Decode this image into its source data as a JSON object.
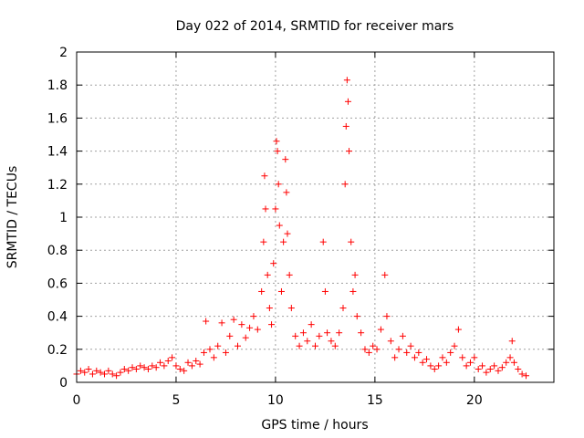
{
  "chart_data": {
    "type": "scatter",
    "title": "Day 022 of 2014, SRMTID for receiver mars",
    "xlabel": "GPS time / hours",
    "ylabel": "SRMTID / TECUs",
    "xlim": [
      0,
      24
    ],
    "ylim": [
      0,
      2
    ],
    "xticks": [
      0,
      5,
      10,
      15,
      20
    ],
    "yticks": [
      0,
      0.2,
      0.4,
      0.6,
      0.8,
      1,
      1.2,
      1.4,
      1.6,
      1.8,
      2
    ],
    "xtick_labels": [
      "0",
      "5",
      "10",
      "15",
      "20"
    ],
    "ytick_labels": [
      "0",
      "0.2",
      "0.4",
      "0.6",
      "0.8",
      "1",
      "1.2",
      "1.4",
      "1.6",
      "1.8",
      "2"
    ],
    "grid": true,
    "marker": "+",
    "color": "#ff0000",
    "series": [
      {
        "name": "SRMTID",
        "data_extent_hours": [
          0,
          22.7
        ],
        "points": [
          [
            0.0,
            0.05
          ],
          [
            0.2,
            0.07
          ],
          [
            0.4,
            0.06
          ],
          [
            0.6,
            0.08
          ],
          [
            0.8,
            0.05
          ],
          [
            1.0,
            0.07
          ],
          [
            1.2,
            0.06
          ],
          [
            1.4,
            0.05
          ],
          [
            1.6,
            0.07
          ],
          [
            1.8,
            0.05
          ],
          [
            2.0,
            0.04
          ],
          [
            2.2,
            0.06
          ],
          [
            2.4,
            0.08
          ],
          [
            2.6,
            0.07
          ],
          [
            2.8,
            0.09
          ],
          [
            3.0,
            0.08
          ],
          [
            3.2,
            0.1
          ],
          [
            3.4,
            0.09
          ],
          [
            3.6,
            0.08
          ],
          [
            3.8,
            0.1
          ],
          [
            4.0,
            0.09
          ],
          [
            4.2,
            0.12
          ],
          [
            4.4,
            0.1
          ],
          [
            4.6,
            0.13
          ],
          [
            4.8,
            0.15
          ],
          [
            5.0,
            0.1
          ],
          [
            5.2,
            0.08
          ],
          [
            5.4,
            0.07
          ],
          [
            5.6,
            0.12
          ],
          [
            5.8,
            0.1
          ],
          [
            6.0,
            0.13
          ],
          [
            6.2,
            0.11
          ],
          [
            6.4,
            0.18
          ],
          [
            6.5,
            0.37
          ],
          [
            6.7,
            0.2
          ],
          [
            6.9,
            0.15
          ],
          [
            7.1,
            0.22
          ],
          [
            7.3,
            0.36
          ],
          [
            7.5,
            0.18
          ],
          [
            7.7,
            0.28
          ],
          [
            7.9,
            0.38
          ],
          [
            8.1,
            0.22
          ],
          [
            8.3,
            0.35
          ],
          [
            8.5,
            0.27
          ],
          [
            8.7,
            0.33
          ],
          [
            8.9,
            0.4
          ],
          [
            9.1,
            0.32
          ],
          [
            9.3,
            0.55
          ],
          [
            9.4,
            0.85
          ],
          [
            9.45,
            1.25
          ],
          [
            9.5,
            1.05
          ],
          [
            9.6,
            0.65
          ],
          [
            9.7,
            0.45
          ],
          [
            9.8,
            0.35
          ],
          [
            9.9,
            0.72
          ],
          [
            10.0,
            1.05
          ],
          [
            10.05,
            1.46
          ],
          [
            10.1,
            1.4
          ],
          [
            10.15,
            1.2
          ],
          [
            10.2,
            0.95
          ],
          [
            10.3,
            0.55
          ],
          [
            10.4,
            0.85
          ],
          [
            10.5,
            1.35
          ],
          [
            10.55,
            1.15
          ],
          [
            10.6,
            0.9
          ],
          [
            10.7,
            0.65
          ],
          [
            10.8,
            0.45
          ],
          [
            11.0,
            0.28
          ],
          [
            11.2,
            0.22
          ],
          [
            11.4,
            0.3
          ],
          [
            11.6,
            0.25
          ],
          [
            11.8,
            0.35
          ],
          [
            12.0,
            0.22
          ],
          [
            12.2,
            0.28
          ],
          [
            12.4,
            0.85
          ],
          [
            12.5,
            0.55
          ],
          [
            12.6,
            0.3
          ],
          [
            12.8,
            0.25
          ],
          [
            13.0,
            0.22
          ],
          [
            13.2,
            0.3
          ],
          [
            13.4,
            0.45
          ],
          [
            13.5,
            1.2
          ],
          [
            13.55,
            1.55
          ],
          [
            13.6,
            1.83
          ],
          [
            13.65,
            1.7
          ],
          [
            13.7,
            1.4
          ],
          [
            13.8,
            0.85
          ],
          [
            13.9,
            0.55
          ],
          [
            14.0,
            0.65
          ],
          [
            14.1,
            0.4
          ],
          [
            14.3,
            0.3
          ],
          [
            14.5,
            0.2
          ],
          [
            14.7,
            0.18
          ],
          [
            14.9,
            0.22
          ],
          [
            15.1,
            0.2
          ],
          [
            15.3,
            0.32
          ],
          [
            15.5,
            0.65
          ],
          [
            15.6,
            0.4
          ],
          [
            15.8,
            0.25
          ],
          [
            16.0,
            0.15
          ],
          [
            16.2,
            0.2
          ],
          [
            16.4,
            0.28
          ],
          [
            16.6,
            0.18
          ],
          [
            16.8,
            0.22
          ],
          [
            17.0,
            0.15
          ],
          [
            17.2,
            0.18
          ],
          [
            17.4,
            0.12
          ],
          [
            17.6,
            0.14
          ],
          [
            17.8,
            0.1
          ],
          [
            18.0,
            0.08
          ],
          [
            18.2,
            0.1
          ],
          [
            18.4,
            0.15
          ],
          [
            18.6,
            0.12
          ],
          [
            18.8,
            0.18
          ],
          [
            19.0,
            0.22
          ],
          [
            19.2,
            0.32
          ],
          [
            19.4,
            0.15
          ],
          [
            19.6,
            0.1
          ],
          [
            19.8,
            0.12
          ],
          [
            20.0,
            0.15
          ],
          [
            20.2,
            0.08
          ],
          [
            20.4,
            0.1
          ],
          [
            20.6,
            0.06
          ],
          [
            20.8,
            0.08
          ],
          [
            21.0,
            0.1
          ],
          [
            21.2,
            0.07
          ],
          [
            21.4,
            0.09
          ],
          [
            21.6,
            0.12
          ],
          [
            21.8,
            0.15
          ],
          [
            21.9,
            0.25
          ],
          [
            22.0,
            0.12
          ],
          [
            22.2,
            0.08
          ],
          [
            22.4,
            0.05
          ],
          [
            22.6,
            0.04
          ]
        ]
      }
    ]
  }
}
